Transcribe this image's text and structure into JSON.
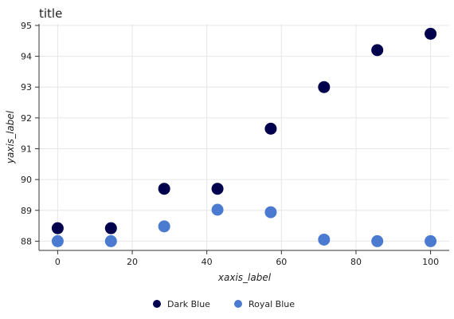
{
  "chart_data": {
    "type": "scatter",
    "title": "title",
    "xlabel": "xaxis_label",
    "ylabel": "yaxis_label",
    "xlim": [
      -5,
      105
    ],
    "ylim": [
      87.7,
      95.05
    ],
    "x_ticks": [
      0,
      20,
      40,
      60,
      80,
      100
    ],
    "y_ticks": [
      88,
      89,
      90,
      91,
      92,
      93,
      94,
      95
    ],
    "grid": true,
    "legend_position": "bottom",
    "series": [
      {
        "name": "Dark Blue",
        "color": "#00004d",
        "points": [
          [
            0,
            88.42
          ],
          [
            14.29,
            88.42
          ],
          [
            28.57,
            89.7
          ],
          [
            42.86,
            89.7
          ],
          [
            57.14,
            91.65
          ],
          [
            71.43,
            93.0
          ],
          [
            85.71,
            94.2
          ],
          [
            100,
            94.73
          ]
        ]
      },
      {
        "name": "Royal Blue",
        "color": "#4a7bd0",
        "points": [
          [
            0,
            88.0
          ],
          [
            14.29,
            88.0
          ],
          [
            28.57,
            88.48
          ],
          [
            42.86,
            89.02
          ],
          [
            57.14,
            88.94
          ],
          [
            71.43,
            88.05
          ],
          [
            85.71,
            88.0
          ],
          [
            100,
            88.0
          ]
        ]
      }
    ]
  }
}
